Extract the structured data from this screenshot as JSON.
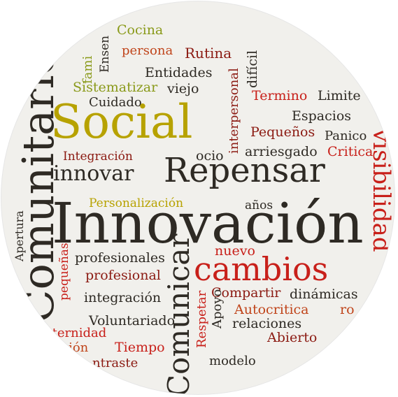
{
  "colors": {
    "background": "#f1f0ec",
    "dark": "#2e2a24",
    "gold": "#b7a200",
    "olive": "#8a9a1a",
    "red": "#c8201a",
    "orange": "#c0441a",
    "darkred": "#8b1a12"
  },
  "words": {
    "cocina": "Cocina",
    "fami": "fami",
    "ensen": "Ensen",
    "persona": "persona",
    "rutina": "Rutina",
    "dificil": "difícil",
    "entidades": "Entidades",
    "sistematizar": "Sistematizar",
    "viejo": "viejo",
    "interpersonal": "interpersonal",
    "cuidado": "Cuidado",
    "termino": "Termino",
    "limite": "Limite",
    "comunitario": "Comunitario",
    "social": "Social",
    "espacios": "Espacios",
    "pequenos": "Pequeños",
    "panico": "Panico",
    "integracion_cap": "Integración",
    "ocio": "ocio",
    "arriesgado": "arriesgado",
    "critica": "Critica",
    "visibilidad": "visibilidad",
    "innovar": "innovar",
    "repensar": "Repensar",
    "personalizacion": "Personalización",
    "anos": "años",
    "apertura": "Apertura",
    "innovacion": "Innovación",
    "pequenas": "pequeñas",
    "profesionales": "profesionales",
    "nuevo": "nuevo",
    "profesional": "profesional",
    "cambios": "cambios",
    "comunicar": "Comunicar",
    "integracion": "integración",
    "compartir": "Compartir",
    "dinamicas": "dinámicas",
    "respetar": "Respetar",
    "apoyo": "Apoyo",
    "autocritica": "Autocritica",
    "ro": "ro",
    "voluntariado": "Voluntariado",
    "relaciones": "relaciones",
    "eternidad": "eternidad",
    "abierto": "Abierto",
    "cion": "ción",
    "tiempo": "Tiempo",
    "contraste": "ntraste",
    "modelo": "modelo"
  }
}
